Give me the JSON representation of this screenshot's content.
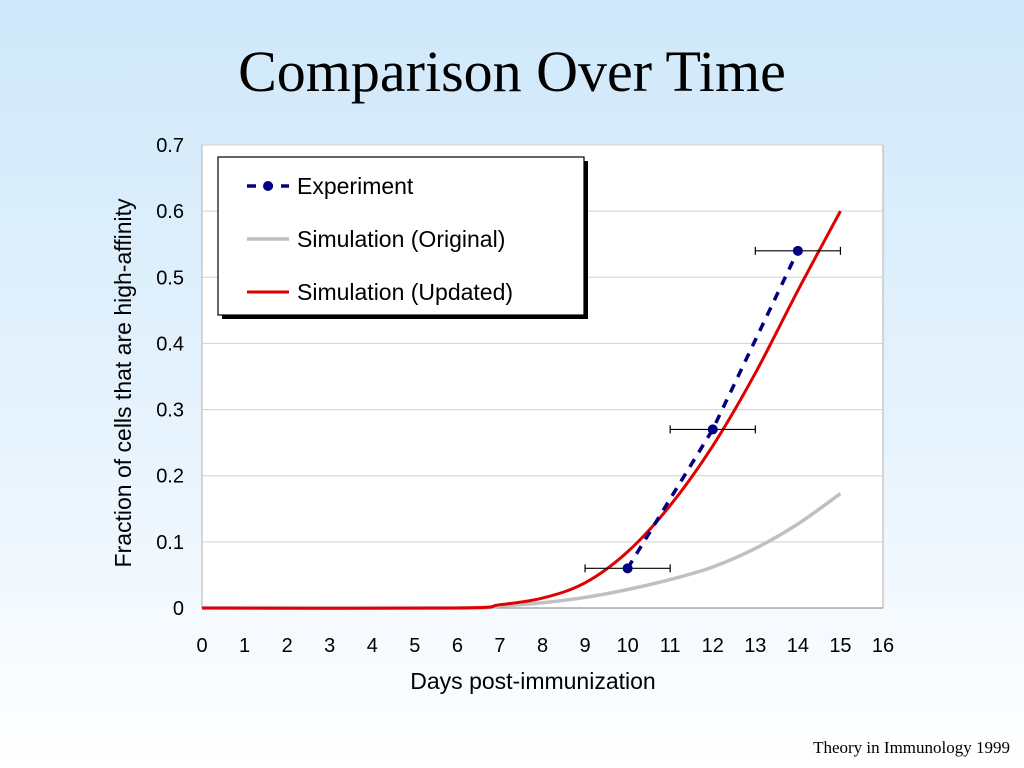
{
  "slide": {
    "title": "Comparison Over Time",
    "footer": "Theory in Immunology 1999"
  },
  "chart_data": {
    "type": "line",
    "xlabel": "Days post-immunization",
    "ylabel": "Fraction of cells that are high-affinity",
    "xlim": [
      0,
      16
    ],
    "ylim": [
      0,
      0.7
    ],
    "x_ticks": [
      "0",
      "1",
      "2",
      "3",
      "4",
      "5",
      "6",
      "7",
      "8",
      "9",
      "10",
      "11",
      "12",
      "13",
      "14",
      "15",
      "16"
    ],
    "y_ticks": [
      "0",
      "0.1",
      "0.2",
      "0.3",
      "0.4",
      "0.5",
      "0.6",
      "0.7"
    ],
    "grid": "horizontal",
    "legend_position": "top-left",
    "series": [
      {
        "name": "Experiment",
        "style": "dashed-markers",
        "color": "#000080",
        "x": [
          10,
          12,
          14
        ],
        "y": [
          0.06,
          0.27,
          0.54
        ],
        "x_error": [
          1,
          1,
          1
        ]
      },
      {
        "name": "Simulation (Original)",
        "style": "solid",
        "color": "#c0c0c0",
        "x": [
          0,
          6,
          7,
          8,
          9,
          10,
          11,
          12,
          13,
          14,
          15
        ],
        "y": [
          0,
          0,
          0.003,
          0.008,
          0.016,
          0.028,
          0.043,
          0.062,
          0.09,
          0.127,
          0.173
        ]
      },
      {
        "name": "Simulation (Updated)",
        "style": "solid",
        "color": "#e00000",
        "x": [
          0,
          6,
          7,
          8,
          9,
          10,
          11,
          12,
          13,
          14,
          15
        ],
        "y": [
          0,
          0,
          0.005,
          0.015,
          0.038,
          0.085,
          0.155,
          0.245,
          0.355,
          0.48,
          0.6
        ]
      }
    ]
  }
}
